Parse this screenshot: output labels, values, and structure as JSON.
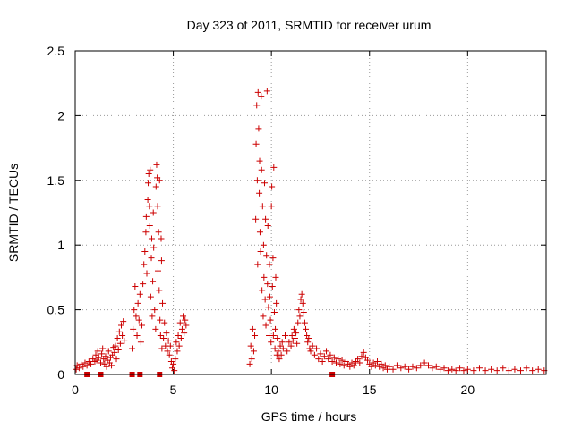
{
  "chart_data": {
    "type": "scatter",
    "title": "Day 323 of 2011, SRMTID for receiver urum",
    "xlabel": "GPS time / hours",
    "ylabel": "SRMTID / TECUs",
    "xlim": [
      0,
      24
    ],
    "ylim": [
      0,
      2.5
    ],
    "xticks": [
      0,
      5,
      10,
      15,
      20
    ],
    "yticks": [
      0,
      0.5,
      1,
      1.5,
      2,
      2.5
    ],
    "xtick_labels": [
      "0",
      "5",
      "10",
      "15",
      "20"
    ],
    "ytick_labels": [
      "0",
      "0.5",
      "1",
      "1.5",
      "2",
      "2.5"
    ],
    "grid": true,
    "marker_color": "#cc0000",
    "series": [
      {
        "name": "SRMTID",
        "marker": "plus",
        "points": [
          [
            0.05,
            0.04
          ],
          [
            0.1,
            0.07
          ],
          [
            0.2,
            0.05
          ],
          [
            0.3,
            0.08
          ],
          [
            0.4,
            0.06
          ],
          [
            0.5,
            0.09
          ],
          [
            0.6,
            0.07
          ],
          [
            0.7,
            0.1
          ],
          [
            0.8,
            0.08
          ],
          [
            0.9,
            0.12
          ],
          [
            1.0,
            0.1
          ],
          [
            1.05,
            0.15
          ],
          [
            1.1,
            0.11
          ],
          [
            1.15,
            0.18
          ],
          [
            1.2,
            0.13
          ],
          [
            1.3,
            0.09
          ],
          [
            1.35,
            0.16
          ],
          [
            1.4,
            0.2
          ],
          [
            1.45,
            0.12
          ],
          [
            1.5,
            0.08
          ],
          [
            1.55,
            0.14
          ],
          [
            1.6,
            0.06
          ],
          [
            1.65,
            0.11
          ],
          [
            1.7,
            0.18
          ],
          [
            1.75,
            0.09
          ],
          [
            1.8,
            0.13
          ],
          [
            1.85,
            0.07
          ],
          [
            1.9,
            0.15
          ],
          [
            1.95,
            0.21
          ],
          [
            2.0,
            0.17
          ],
          [
            2.05,
            0.22
          ],
          [
            2.1,
            0.12
          ],
          [
            2.15,
            0.28
          ],
          [
            2.2,
            0.19
          ],
          [
            2.25,
            0.33
          ],
          [
            2.3,
            0.24
          ],
          [
            2.35,
            0.38
          ],
          [
            2.4,
            0.3
          ],
          [
            2.45,
            0.41
          ],
          [
            2.5,
            0.26
          ],
          [
            2.9,
            0.2
          ],
          [
            2.95,
            0.35
          ],
          [
            3.0,
            0.5
          ],
          [
            3.05,
            0.68
          ],
          [
            3.1,
            0.45
          ],
          [
            3.15,
            0.3
          ],
          [
            3.2,
            0.55
          ],
          [
            3.25,
            0.42
          ],
          [
            3.3,
            0.62
          ],
          [
            3.35,
            0.25
          ],
          [
            3.4,
            0.38
          ],
          [
            3.45,
            0.7
          ],
          [
            3.5,
            0.85
          ],
          [
            3.55,
            0.95
          ],
          [
            3.6,
            1.1
          ],
          [
            3.62,
            1.22
          ],
          [
            3.65,
            0.78
          ],
          [
            3.7,
            1.35
          ],
          [
            3.72,
            1.48
          ],
          [
            3.75,
            1.55
          ],
          [
            3.78,
            1.3
          ],
          [
            3.8,
            1.15
          ],
          [
            3.82,
            1.58
          ],
          [
            3.85,
            0.6
          ],
          [
            3.88,
            0.9
          ],
          [
            3.9,
            1.05
          ],
          [
            3.92,
            0.45
          ],
          [
            3.95,
            0.72
          ],
          [
            3.98,
            1.25
          ],
          [
            4.0,
            0.98
          ],
          [
            4.05,
            0.5
          ],
          [
            4.1,
            0.35
          ],
          [
            4.12,
            1.45
          ],
          [
            4.15,
            1.62
          ],
          [
            4.18,
            1.52
          ],
          [
            4.2,
            1.3
          ],
          [
            4.22,
            0.8
          ],
          [
            4.25,
            1.1
          ],
          [
            4.28,
            0.65
          ],
          [
            4.3,
            1.5
          ],
          [
            4.32,
            0.42
          ],
          [
            4.35,
            0.3
          ],
          [
            4.38,
            1.05
          ],
          [
            4.4,
            0.88
          ],
          [
            4.42,
            0.2
          ],
          [
            4.45,
            0.55
          ],
          [
            4.5,
            0.28
          ],
          [
            4.55,
            0.4
          ],
          [
            4.6,
            0.22
          ],
          [
            4.65,
            0.32
          ],
          [
            4.7,
            0.18
          ],
          [
            4.75,
            0.26
          ],
          [
            4.8,
            0.15
          ],
          [
            4.85,
            0.22
          ],
          [
            4.9,
            0.1
          ],
          [
            4.95,
            0.05
          ],
          [
            5.0,
            0.08
          ],
          [
            5.05,
            0.03
          ],
          [
            5.1,
            0.12
          ],
          [
            5.15,
            0.25
          ],
          [
            5.2,
            0.18
          ],
          [
            5.25,
            0.3
          ],
          [
            5.3,
            0.22
          ],
          [
            5.35,
            0.4
          ],
          [
            5.4,
            0.28
          ],
          [
            5.45,
            0.35
          ],
          [
            5.5,
            0.45
          ],
          [
            5.55,
            0.32
          ],
          [
            5.6,
            0.42
          ],
          [
            5.65,
            0.38
          ],
          [
            8.9,
            0.08
          ],
          [
            8.95,
            0.22
          ],
          [
            9.0,
            0.12
          ],
          [
            9.05,
            0.35
          ],
          [
            9.1,
            0.18
          ],
          [
            9.15,
            0.3
          ],
          [
            9.2,
            1.2
          ],
          [
            9.22,
            1.78
          ],
          [
            9.25,
            2.08
          ],
          [
            9.28,
            1.5
          ],
          [
            9.3,
            0.85
          ],
          [
            9.32,
            2.18
          ],
          [
            9.35,
            1.9
          ],
          [
            9.38,
            1.4
          ],
          [
            9.4,
            1.65
          ],
          [
            9.42,
            1.1
          ],
          [
            9.45,
            0.95
          ],
          [
            9.48,
            2.15
          ],
          [
            9.5,
            1.58
          ],
          [
            9.52,
            0.65
          ],
          [
            9.55,
            1.3
          ],
          [
            9.58,
            0.45
          ],
          [
            9.6,
            1.0
          ],
          [
            9.62,
            0.75
          ],
          [
            9.65,
            1.48
          ],
          [
            9.68,
            0.58
          ],
          [
            9.7,
            1.2
          ],
          [
            9.72,
            0.38
          ],
          [
            9.75,
            0.92
          ],
          [
            9.78,
            2.19
          ],
          [
            9.8,
            0.7
          ],
          [
            9.82,
            1.15
          ],
          [
            9.85,
            0.52
          ],
          [
            9.88,
            0.3
          ],
          [
            9.9,
            0.85
          ],
          [
            9.92,
            0.6
          ],
          [
            9.95,
            0.42
          ],
          [
            9.98,
            0.25
          ],
          [
            10.0,
            1.3
          ],
          [
            10.02,
            1.45
          ],
          [
            10.05,
            0.68
          ],
          [
            10.08,
            0.9
          ],
          [
            10.1,
            0.3
          ],
          [
            10.12,
            1.6
          ],
          [
            10.15,
            0.48
          ],
          [
            10.18,
            0.2
          ],
          [
            10.2,
            0.35
          ],
          [
            10.22,
            0.75
          ],
          [
            10.25,
            0.55
          ],
          [
            10.28,
            0.15
          ],
          [
            10.3,
            0.28
          ],
          [
            10.35,
            0.18
          ],
          [
            10.4,
            0.12
          ],
          [
            10.45,
            0.22
          ],
          [
            10.5,
            0.15
          ],
          [
            10.55,
            0.25
          ],
          [
            10.6,
            0.2
          ],
          [
            10.7,
            0.3
          ],
          [
            10.8,
            0.18
          ],
          [
            10.9,
            0.25
          ],
          [
            11.0,
            0.22
          ],
          [
            11.05,
            0.3
          ],
          [
            11.1,
            0.26
          ],
          [
            11.15,
            0.35
          ],
          [
            11.2,
            0.28
          ],
          [
            11.25,
            0.32
          ],
          [
            11.3,
            0.24
          ],
          [
            11.35,
            0.4
          ],
          [
            11.4,
            0.5
          ],
          [
            11.45,
            0.45
          ],
          [
            11.5,
            0.58
          ],
          [
            11.55,
            0.62
          ],
          [
            11.6,
            0.55
          ],
          [
            11.65,
            0.48
          ],
          [
            11.7,
            0.4
          ],
          [
            11.75,
            0.35
          ],
          [
            11.8,
            0.3
          ],
          [
            11.85,
            0.25
          ],
          [
            11.9,
            0.28
          ],
          [
            11.95,
            0.2
          ],
          [
            12.0,
            0.18
          ],
          [
            12.1,
            0.22
          ],
          [
            12.2,
            0.15
          ],
          [
            12.3,
            0.2
          ],
          [
            12.4,
            0.12
          ],
          [
            12.5,
            0.16
          ],
          [
            12.6,
            0.1
          ],
          [
            12.7,
            0.14
          ],
          [
            12.8,
            0.18
          ],
          [
            12.9,
            0.12
          ],
          [
            13.0,
            0.15
          ],
          [
            13.1,
            0.1
          ],
          [
            13.2,
            0.13
          ],
          [
            13.3,
            0.09
          ],
          [
            13.4,
            0.12
          ],
          [
            13.5,
            0.08
          ],
          [
            13.6,
            0.11
          ],
          [
            13.7,
            0.07
          ],
          [
            13.8,
            0.1
          ],
          [
            13.9,
            0.08
          ],
          [
            14.0,
            0.06
          ],
          [
            14.1,
            0.09
          ],
          [
            14.2,
            0.07
          ],
          [
            14.3,
            0.1
          ],
          [
            14.4,
            0.12
          ],
          [
            14.5,
            0.09
          ],
          [
            14.6,
            0.14
          ],
          [
            14.7,
            0.17
          ],
          [
            14.8,
            0.13
          ],
          [
            14.9,
            0.11
          ],
          [
            15.0,
            0.08
          ],
          [
            15.1,
            0.06
          ],
          [
            15.2,
            0.09
          ],
          [
            15.3,
            0.07
          ],
          [
            15.4,
            0.1
          ],
          [
            15.5,
            0.06
          ],
          [
            15.6,
            0.08
          ],
          [
            15.7,
            0.05
          ],
          [
            15.8,
            0.07
          ],
          [
            15.9,
            0.04
          ],
          [
            16.0,
            0.06
          ],
          [
            16.2,
            0.04
          ],
          [
            16.4,
            0.07
          ],
          [
            16.6,
            0.05
          ],
          [
            16.8,
            0.06
          ],
          [
            17.0,
            0.04
          ],
          [
            17.2,
            0.06
          ],
          [
            17.4,
            0.05
          ],
          [
            17.6,
            0.07
          ],
          [
            17.8,
            0.09
          ],
          [
            18.0,
            0.07
          ],
          [
            18.2,
            0.05
          ],
          [
            18.4,
            0.06
          ],
          [
            18.6,
            0.04
          ],
          [
            18.8,
            0.05
          ],
          [
            19.0,
            0.03
          ],
          [
            19.2,
            0.04
          ],
          [
            19.4,
            0.03
          ],
          [
            19.6,
            0.05
          ],
          [
            19.8,
            0.03
          ],
          [
            20.0,
            0.04
          ],
          [
            20.3,
            0.03
          ],
          [
            20.6,
            0.05
          ],
          [
            20.9,
            0.03
          ],
          [
            21.2,
            0.04
          ],
          [
            21.5,
            0.03
          ],
          [
            21.8,
            0.05
          ],
          [
            22.1,
            0.03
          ],
          [
            22.4,
            0.04
          ],
          [
            22.7,
            0.03
          ],
          [
            23.0,
            0.05
          ],
          [
            23.3,
            0.03
          ],
          [
            23.6,
            0.04
          ],
          [
            23.9,
            0.03
          ]
        ]
      },
      {
        "name": "zero-level squares",
        "marker": "square",
        "points": [
          [
            0.6,
            0
          ],
          [
            1.3,
            0
          ],
          [
            2.9,
            0
          ],
          [
            3.3,
            0
          ],
          [
            4.3,
            0
          ],
          [
            13.1,
            0
          ]
        ]
      }
    ]
  }
}
